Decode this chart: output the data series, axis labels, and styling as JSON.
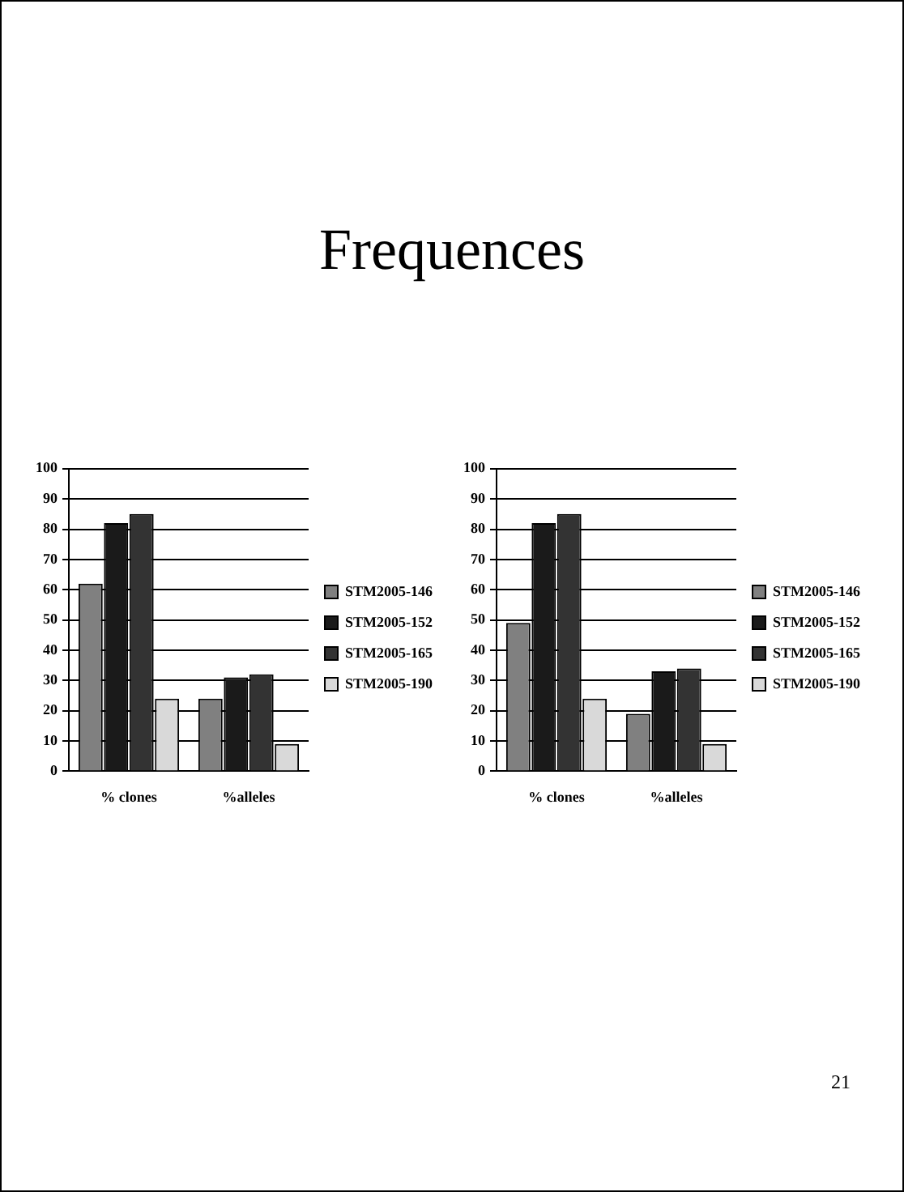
{
  "chart_data": [
    {
      "type": "bar",
      "title": "Frequences",
      "categories": [
        "% clones",
        "%alleles"
      ],
      "series": [
        {
          "name": "STM2005-146",
          "color": "#808080",
          "values": [
            62,
            24
          ]
        },
        {
          "name": "STM2005-152",
          "color": "#1a1a1a",
          "values": [
            82,
            31
          ]
        },
        {
          "name": "STM2005-165",
          "color": "#333333",
          "values": [
            85,
            32
          ]
        },
        {
          "name": "STM2005-190",
          "color": "#d9d9d9",
          "values": [
            24,
            9
          ]
        }
      ],
      "ylim": [
        0,
        100
      ],
      "yticks": [
        0,
        10,
        20,
        30,
        40,
        50,
        60,
        70,
        80,
        90,
        100
      ],
      "grid": "y",
      "legend": "right"
    },
    {
      "type": "bar",
      "categories": [
        "% clones",
        "%alleles"
      ],
      "series": [
        {
          "name": "STM2005-146",
          "color": "#808080",
          "values": [
            49,
            19
          ]
        },
        {
          "name": "STM2005-152",
          "color": "#1a1a1a",
          "values": [
            82,
            33
          ]
        },
        {
          "name": "STM2005-165",
          "color": "#333333",
          "values": [
            85,
            34
          ]
        },
        {
          "name": "STM2005-190",
          "color": "#d9d9d9",
          "values": [
            24,
            9
          ]
        }
      ],
      "ylim": [
        0,
        100
      ],
      "yticks": [
        0,
        10,
        20,
        30,
        40,
        50,
        60,
        70,
        80,
        90,
        100
      ],
      "grid": "y",
      "legend": "right",
      "annotations": [
        "21"
      ]
    }
  ]
}
